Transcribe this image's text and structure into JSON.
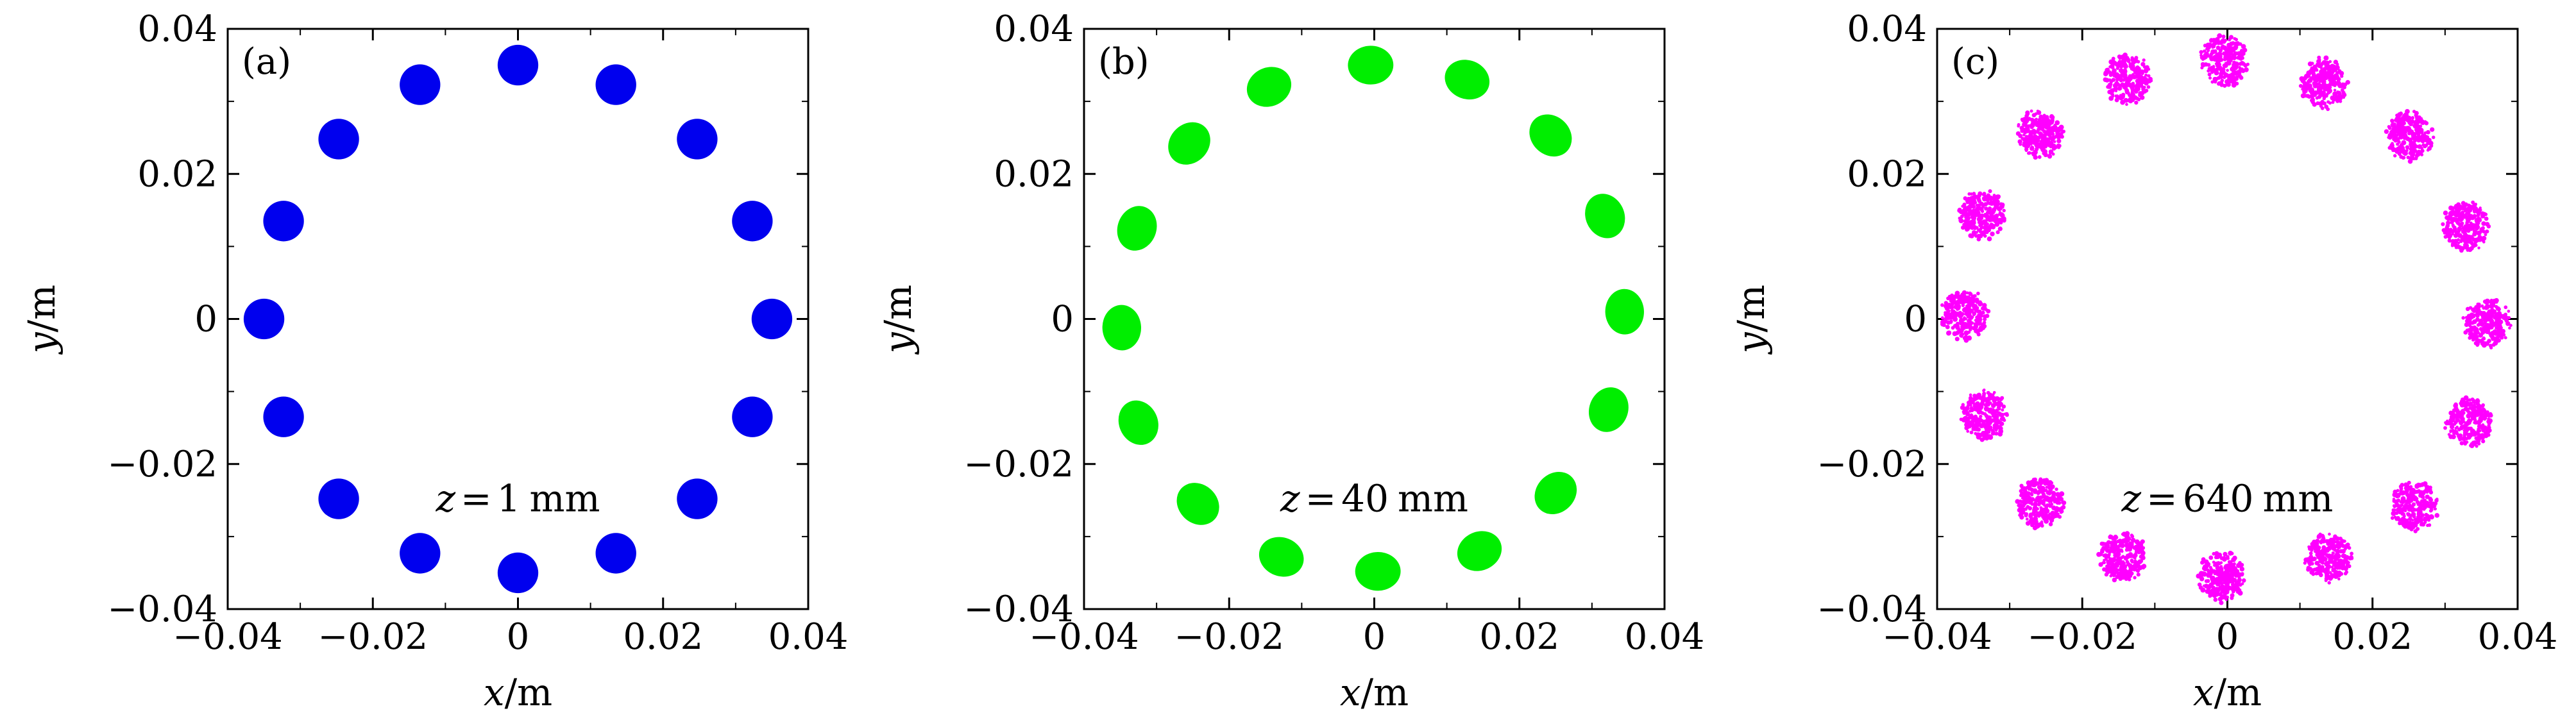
{
  "chart_data": [
    {
      "type": "scatter",
      "panel_label": "(a)",
      "annotation": {
        "var": "z",
        "eq": "=",
        "value": "1",
        "unit": "mm"
      },
      "xlabel": {
        "var": "x",
        "unit": "/m"
      },
      "ylabel": {
        "var": "y",
        "unit": "/m"
      },
      "xlim": [
        -0.04,
        0.04
      ],
      "ylim": [
        -0.04,
        0.04
      ],
      "xticks": [
        -0.04,
        -0.02,
        0,
        0.02,
        0.04
      ],
      "yticks": [
        -0.04,
        -0.02,
        0,
        0.02,
        0.04
      ],
      "xtick_labels": [
        "−0.04",
        "−0.02",
        "0",
        "0.02",
        "0.04"
      ],
      "ytick_labels": [
        "−0.04",
        "−0.02",
        "0",
        "0.02",
        "0.04"
      ],
      "color": "#0000ee",
      "style": "solid",
      "spot_radius": 0.0028,
      "points": [
        {
          "x": 0.0,
          "y": 0.035
        },
        {
          "x": 0.0135,
          "y": 0.0323
        },
        {
          "x": 0.0247,
          "y": 0.0248
        },
        {
          "x": 0.0323,
          "y": 0.0135
        },
        {
          "x": 0.035,
          "y": 0.0
        },
        {
          "x": 0.0323,
          "y": -0.0135
        },
        {
          "x": 0.0247,
          "y": -0.0248
        },
        {
          "x": 0.0135,
          "y": -0.0323
        },
        {
          "x": 0.0,
          "y": -0.035
        },
        {
          "x": -0.0135,
          "y": -0.0323
        },
        {
          "x": -0.0247,
          "y": -0.0248
        },
        {
          "x": -0.0323,
          "y": -0.0135
        },
        {
          "x": -0.035,
          "y": 0.0
        },
        {
          "x": -0.0323,
          "y": 0.0135
        },
        {
          "x": -0.0247,
          "y": 0.0248
        },
        {
          "x": -0.0135,
          "y": 0.0323
        }
      ]
    },
    {
      "type": "scatter",
      "panel_label": "(b)",
      "annotation": {
        "var": "z",
        "eq": "=",
        "value": "40",
        "unit": "mm"
      },
      "xlabel": {
        "var": "x",
        "unit": "/m"
      },
      "ylabel": {
        "var": "y",
        "unit": "/m"
      },
      "xlim": [
        -0.04,
        0.04
      ],
      "ylim": [
        -0.04,
        0.04
      ],
      "xticks": [
        -0.04,
        -0.02,
        0,
        0.02,
        0.04
      ],
      "yticks": [
        -0.04,
        -0.02,
        0,
        0.02,
        0.04
      ],
      "xtick_labels": [
        "−0.04",
        "−0.02",
        "0",
        "0.02",
        "0.04"
      ],
      "ytick_labels": [
        "−0.04",
        "−0.02",
        "0",
        "0.02",
        "0.04"
      ],
      "color": "#00ee00",
      "style": "ellipse",
      "spot_radius": 0.0029,
      "points": [
        {
          "x": -0.0005,
          "y": 0.035
        },
        {
          "x": 0.0128,
          "y": 0.033
        },
        {
          "x": 0.0243,
          "y": 0.0253
        },
        {
          "x": 0.0318,
          "y": 0.0142
        },
        {
          "x": 0.0345,
          "y": 0.001
        },
        {
          "x": 0.0323,
          "y": -0.0125
        },
        {
          "x": 0.025,
          "y": -0.024
        },
        {
          "x": 0.0145,
          "y": -0.032
        },
        {
          "x": 0.0005,
          "y": -0.0348
        },
        {
          "x": -0.0128,
          "y": -0.0328
        },
        {
          "x": -0.0243,
          "y": -0.0255
        },
        {
          "x": -0.0325,
          "y": -0.0143
        },
        {
          "x": -0.0348,
          "y": -0.0012
        },
        {
          "x": -0.0327,
          "y": 0.0125
        },
        {
          "x": -0.0255,
          "y": 0.0242
        },
        {
          "x": -0.0145,
          "y": 0.032
        }
      ]
    },
    {
      "type": "scatter",
      "panel_label": "(c)",
      "annotation": {
        "var": "z",
        "eq": "=",
        "value": "640",
        "unit": "mm"
      },
      "xlabel": {
        "var": "x",
        "unit": "/m"
      },
      "ylabel": {
        "var": "y",
        "unit": "/m"
      },
      "xlim": [
        -0.04,
        0.04
      ],
      "ylim": [
        -0.04,
        0.04
      ],
      "xticks": [
        -0.04,
        -0.02,
        0,
        0.02,
        0.04
      ],
      "yticks": [
        -0.04,
        -0.02,
        0,
        0.02,
        0.04
      ],
      "xtick_labels": [
        "−0.04",
        "−0.02",
        "0",
        "0.02",
        "0.04"
      ],
      "ytick_labels": [
        "−0.04",
        "−0.02",
        "0",
        "0.02",
        "0.04"
      ],
      "color": "#ff00ff",
      "style": "speckle",
      "spot_radius": 0.003,
      "points": [
        {
          "x": -0.0005,
          "y": 0.0355
        },
        {
          "x": 0.0133,
          "y": 0.0325
        },
        {
          "x": 0.025,
          "y": 0.0252
        },
        {
          "x": 0.033,
          "y": 0.0128
        },
        {
          "x": 0.0358,
          "y": -0.0005
        },
        {
          "x": 0.0333,
          "y": -0.0143
        },
        {
          "x": 0.0258,
          "y": -0.0258
        },
        {
          "x": 0.0138,
          "y": -0.0328
        },
        {
          "x": -0.0008,
          "y": -0.0355
        },
        {
          "x": -0.0145,
          "y": -0.0328
        },
        {
          "x": -0.0258,
          "y": -0.0253
        },
        {
          "x": -0.0335,
          "y": -0.0132
        },
        {
          "x": -0.0363,
          "y": 0.0005
        },
        {
          "x": -0.0338,
          "y": 0.0143
        },
        {
          "x": -0.0258,
          "y": 0.0255
        },
        {
          "x": -0.0138,
          "y": 0.033
        }
      ]
    }
  ]
}
